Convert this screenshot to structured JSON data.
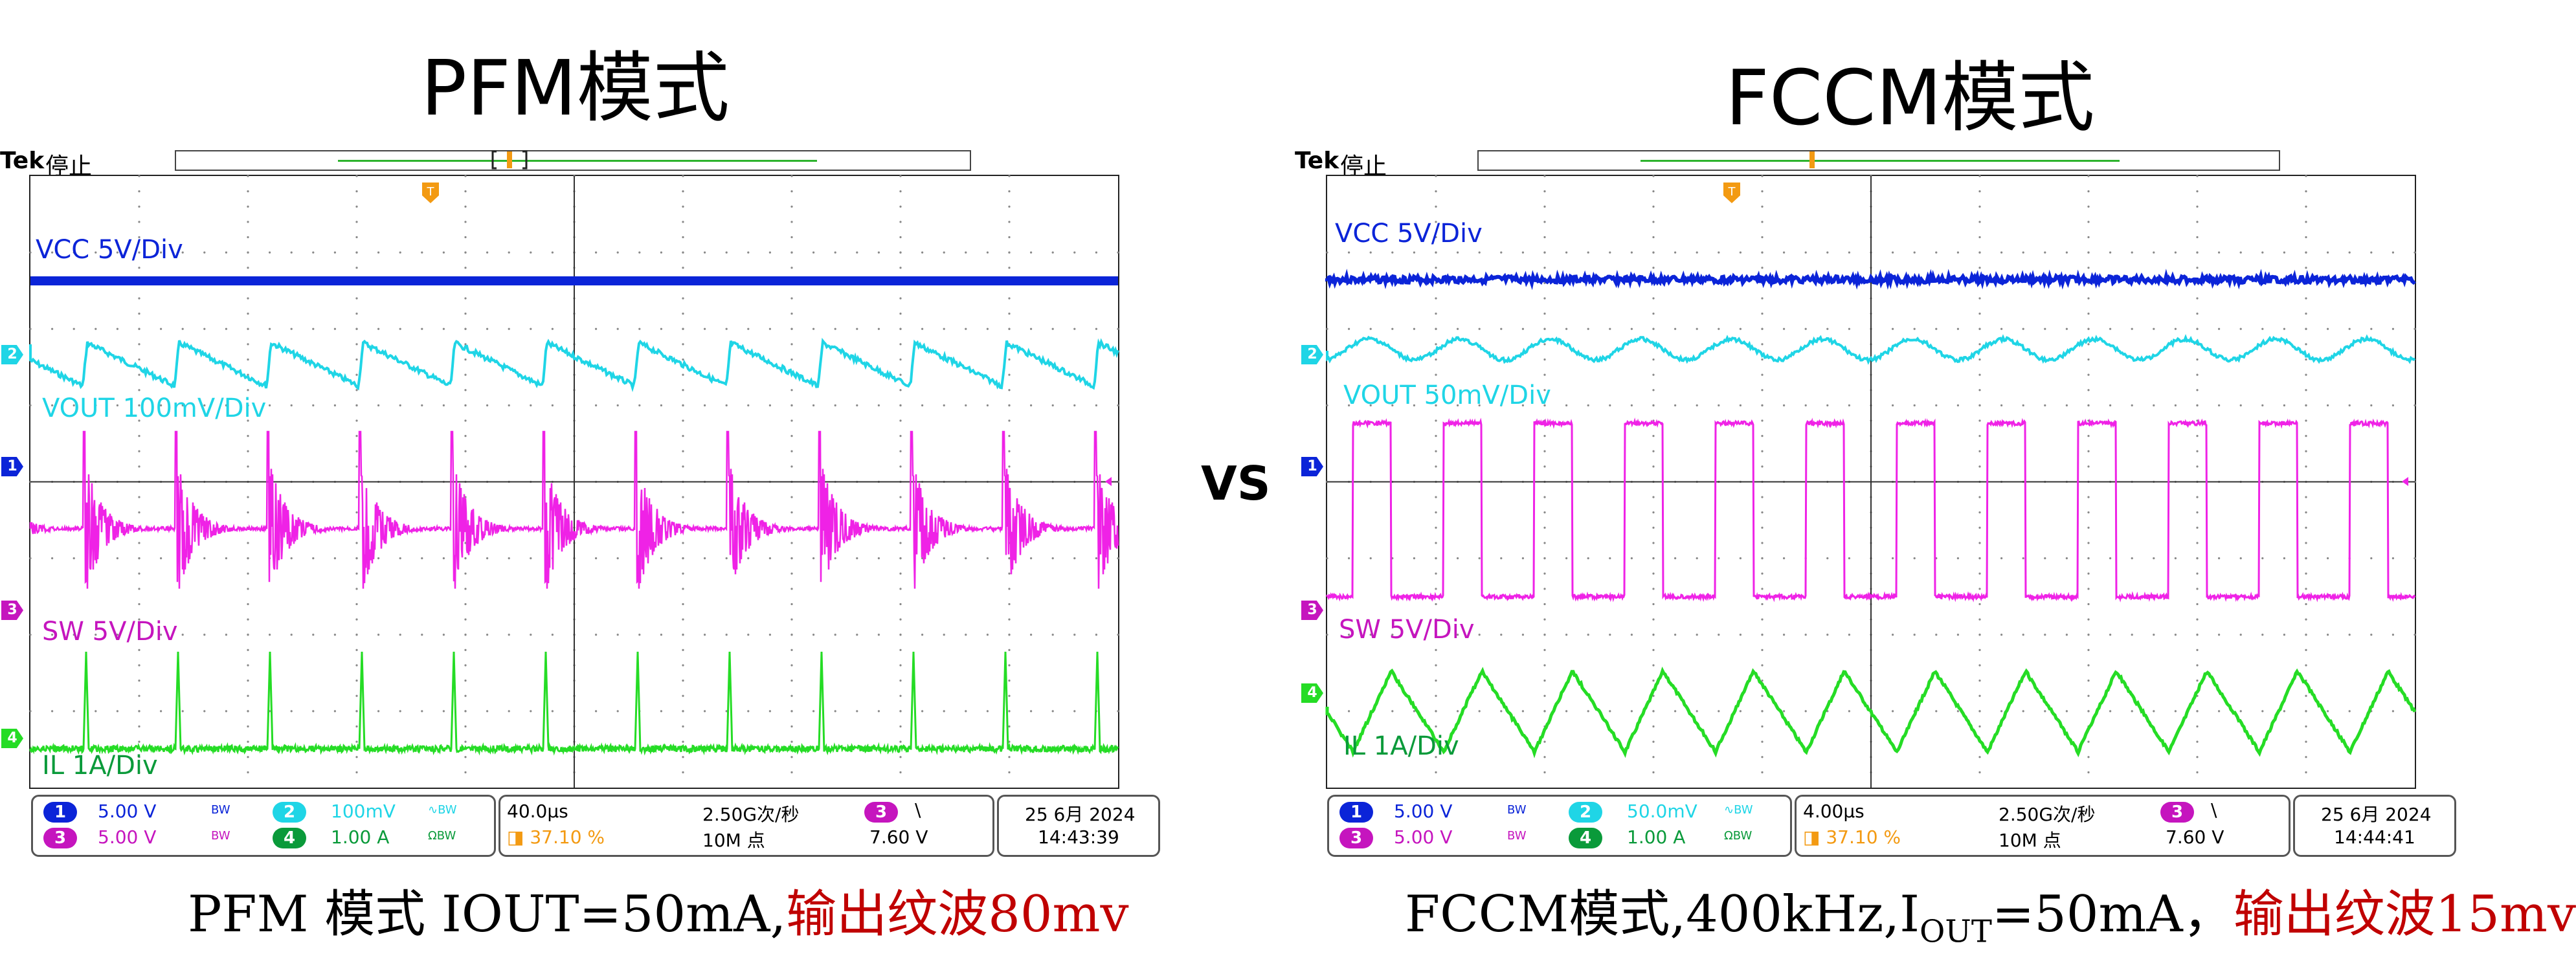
{
  "left": {
    "title": "PFM模式",
    "caption_black": "PFM 模式 IOUT=50mA,",
    "caption_red": "输出纹波80mv",
    "scope": {
      "brand": "Tek",
      "state": "停止",
      "labels": {
        "vcc": "VCC 5V/Div",
        "vout": "VOUT 100mV/Div",
        "sw": "SW 5V/Div",
        "il": "IL 1A/Div"
      },
      "ch1": {
        "num": "1",
        "scale": "5.00 V",
        "bw": "BW"
      },
      "ch2": {
        "num": "2",
        "scale": "100mV",
        "bw": "∿BW"
      },
      "ch3": {
        "num": "3",
        "scale": "5.00 V",
        "bw": "BW"
      },
      "ch4": {
        "num": "4",
        "scale": "1.00 A",
        "bw": "ΩBW"
      },
      "timebase": "40.0µs",
      "trig_pos": "37.10 %",
      "sample_rate": "2.50G次/秒",
      "record": "10M 点",
      "trig_ch": "3",
      "trig_slope": "\\",
      "trig_level": "7.60 V",
      "date": "25 6月 2024",
      "time": "14:43:39"
    }
  },
  "right": {
    "title": "FCCM模式",
    "caption_black_1": "FCCM模式,400kHz,I",
    "caption_sub": "OUT",
    "caption_black_2": "=50mA，",
    "caption_red": "输出纹波15mv",
    "scope": {
      "brand": "Tek",
      "state": "停止",
      "labels": {
        "vcc": "VCC 5V/Div",
        "vout": "VOUT 50mV/Div",
        "sw": "SW 5V/Div",
        "il": "IL 1A/Div"
      },
      "ch1": {
        "num": "1",
        "scale": "5.00 V",
        "bw": "BW"
      },
      "ch2": {
        "num": "2",
        "scale": "50.0mV",
        "bw": "∿BW"
      },
      "ch3": {
        "num": "3",
        "scale": "5.00 V",
        "bw": "BW"
      },
      "ch4": {
        "num": "4",
        "scale": "1.00 A",
        "bw": "ΩBW"
      },
      "timebase": "4.00µs",
      "trig_pos": "37.10 %",
      "sample_rate": "2.50G次/秒",
      "record": "10M 点",
      "trig_ch": "3",
      "trig_slope": "\\",
      "trig_level": "7.60 V",
      "date": "25 6月 2024",
      "time": "14:44:41"
    }
  },
  "vs": "VS",
  "colors": {
    "ch1": "#0b24d8",
    "ch2": "#1fd5e6",
    "ch3": "#ef22e6",
    "ch4": "#25dc25",
    "ch3_label": "#c515be",
    "ch4_label": "#0a9a3a",
    "trigger": "#f39a12"
  }
}
